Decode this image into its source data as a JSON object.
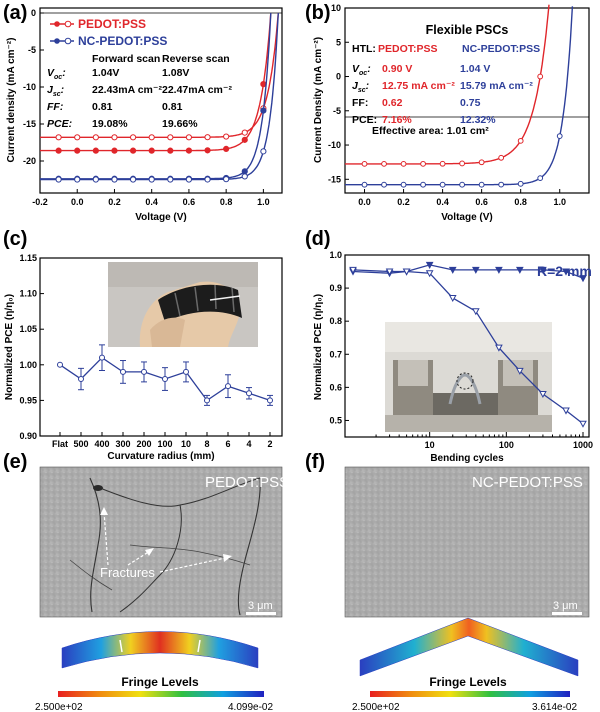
{
  "panels": {
    "a": "(a)",
    "b": "(b)",
    "c": "(c)",
    "d": "(d)",
    "e": "(e)",
    "f": "(f)"
  },
  "colors": {
    "red": "#e0262b",
    "blue": "#2d3f9a",
    "grid": "#000000"
  },
  "chart_data": [
    {
      "id": "a",
      "type": "line",
      "xlabel": "Voltage (V)",
      "ylabel": "Current density (mA cm⁻²)",
      "xlim": [
        -0.2,
        1.1
      ],
      "ylim": [
        -25,
        0
      ],
      "xticks": [
        "-0.2",
        "0.0",
        "0.2",
        "0.4",
        "0.6",
        "0.8",
        "1.0"
      ],
      "xtick_values": [
        -0.2,
        0.0,
        0.2,
        0.4,
        0.6,
        0.8,
        1.0
      ],
      "yticks": [
        "0",
        "-5",
        "-10",
        "-15",
        "-20"
      ],
      "ytick_values": [
        0,
        -5,
        -10,
        -15,
        -20
      ],
      "legend": [
        {
          "name": "PEDOT:PSS",
          "color": "#e0262b"
        },
        {
          "name": "NC-PEDOT:PSS",
          "color": "#2d3f9a"
        }
      ],
      "table": {
        "col_fwd": "Forward scan",
        "col_rev": "Reverse scan",
        "rows": [
          {
            "label": "V",
            "sub": "oc",
            "suffix": ":",
            "fwd": "1.04V",
            "rev": "1.08V"
          },
          {
            "label": "J",
            "sub": "sc",
            "suffix": ":",
            "fwd": "22.43mA cm⁻²",
            "rev": "22.47mA cm⁻²"
          },
          {
            "label": "FF",
            "sub": "",
            "suffix": ":",
            "fwd": "0.81",
            "rev": "0.81"
          },
          {
            "label": "PCE",
            "sub": "",
            "suffix": ":",
            "fwd": "19.08%",
            "rev": "19.66%"
          }
        ]
      },
      "series": [
        {
          "name": "PEDOT:PSS forward",
          "color": "#e0262b",
          "marker": "filled",
          "jsc": 18.6,
          "voc": 1.04,
          "knee": 0.055
        },
        {
          "name": "PEDOT:PSS reverse",
          "color": "#e0262b",
          "marker": "open",
          "jsc": 16.8,
          "voc": 1.08,
          "knee": 0.055
        },
        {
          "name": "NC-PEDOT:PSS forward",
          "color": "#2d3f9a",
          "marker": "filled",
          "jsc": 22.4,
          "voc": 1.04,
          "knee": 0.045
        },
        {
          "name": "NC-PEDOT:PSS reverse",
          "color": "#2d3f9a",
          "marker": "open",
          "jsc": 22.5,
          "voc": 1.08,
          "knee": 0.045
        }
      ]
    },
    {
      "id": "b",
      "type": "line",
      "title": "Flexible PSCs",
      "xlabel": "Voltage (V)",
      "ylabel": "Current Density (mA cm⁻²)",
      "xlim": [
        -0.1,
        1.15
      ],
      "ylim": [
        -17,
        10
      ],
      "xticks": [
        "0.0",
        "0.2",
        "0.4",
        "0.6",
        "0.8",
        "1.0"
      ],
      "xtick_values": [
        0.0,
        0.2,
        0.4,
        0.6,
        0.8,
        1.0
      ],
      "yticks": [
        "10",
        "5",
        "0",
        "-5",
        "-10",
        "-15"
      ],
      "ytick_values": [
        10,
        5,
        0,
        -5,
        -10,
        -15
      ],
      "table": {
        "htl": "HTL:",
        "name_red": "PEDOT:PSS",
        "name_blue": "NC-PEDOT:PSS",
        "rows": [
          {
            "label": "V",
            "sub": "oc",
            "suffix": ":",
            "red": "0.90 V",
            "blue": "1.04 V"
          },
          {
            "label": "J",
            "sub": "sc",
            "suffix": ":",
            "red": "12.75 mA cm⁻²",
            "blue": "15.79 mA cm⁻²"
          },
          {
            "label": "FF:",
            "sub": "",
            "suffix": "",
            "red": "0.62",
            "blue": "0.75"
          },
          {
            "label": "PCE:",
            "sub": "",
            "suffix": "",
            "red": "7.16%",
            "blue": "12.32%"
          }
        ],
        "area": "Effective area: 1.01 cm²"
      },
      "series": [
        {
          "name": "PEDOT:PSS",
          "color": "#e0262b",
          "jsc": 12.75,
          "voc": 0.9,
          "knee": 0.075
        },
        {
          "name": "NC-PEDOT:PSS",
          "color": "#2d3f9a",
          "jsc": 15.79,
          "voc": 1.04,
          "knee": 0.05
        }
      ]
    },
    {
      "id": "c",
      "type": "line",
      "xlabel": "Curvature radius (mm)",
      "ylabel": "Normalized PCE (η/η₀)",
      "ylim": [
        0.9,
        1.15
      ],
      "yticks": [
        "1.15",
        "1.10",
        "1.05",
        "1.00",
        "0.95",
        "0.90"
      ],
      "ytick_values": [
        1.15,
        1.1,
        1.05,
        1.0,
        0.95,
        0.9
      ],
      "categories": [
        "Flat",
        "500",
        "400",
        "300",
        "200",
        "100",
        "10",
        "8",
        "6",
        "4",
        "2"
      ],
      "values": [
        1.0,
        0.98,
        1.01,
        0.99,
        0.99,
        0.98,
        0.99,
        0.95,
        0.97,
        0.96,
        0.95
      ],
      "errors": [
        0.0,
        0.015,
        0.018,
        0.016,
        0.014,
        0.016,
        0.014,
        0.007,
        0.016,
        0.008,
        0.007
      ],
      "color": "#2d3f9a"
    },
    {
      "id": "d",
      "type": "line",
      "xscale": "log",
      "xlabel": "Bending cycles",
      "ylabel": "Normalized PCE (η/η₀)",
      "annotation": "R=2 mm",
      "xlim": [
        1,
        1000
      ],
      "ylim": [
        0.45,
        1.0
      ],
      "xticks": [
        "10",
        "100",
        "1000"
      ],
      "xtick_values": [
        10,
        100,
        1000
      ],
      "yticks": [
        "1.0",
        "0.9",
        "0.8",
        "0.7",
        "0.6",
        "0.5"
      ],
      "ytick_values": [
        1.0,
        0.9,
        0.8,
        0.7,
        0.6,
        0.5
      ],
      "series": [
        {
          "name": "NC-PEDOT:PSS",
          "color": "#2d3f9a",
          "marker": "filled-triangle",
          "x": [
            1,
            3,
            5,
            10,
            20,
            40,
            80,
            150,
            300,
            600,
            1000
          ],
          "y": [
            0.95,
            0.945,
            0.95,
            0.97,
            0.955,
            0.955,
            0.955,
            0.955,
            0.955,
            0.95,
            0.93
          ]
        },
        {
          "name": "PEDOT:PSS",
          "color": "#2d3f9a",
          "marker": "open-triangle",
          "x": [
            1,
            3,
            5,
            10,
            20,
            40,
            80,
            150,
            300,
            600,
            1000
          ],
          "y": [
            0.955,
            0.95,
            0.95,
            0.945,
            0.87,
            0.83,
            0.72,
            0.65,
            0.58,
            0.53,
            0.49
          ]
        }
      ]
    }
  ],
  "sem": {
    "e": {
      "title": "PEDOT:PSS",
      "annotation": "Fractures",
      "scale": "3 μm",
      "fringe": "Fringe Levels",
      "min": "2.500e+02",
      "max": "4.099e-02"
    },
    "f": {
      "title": "NC-PEDOT:PSS",
      "scale": "3 μm",
      "fringe": "Fringe Levels",
      "min": "2.500e+02",
      "max": "3.614e-02"
    }
  }
}
